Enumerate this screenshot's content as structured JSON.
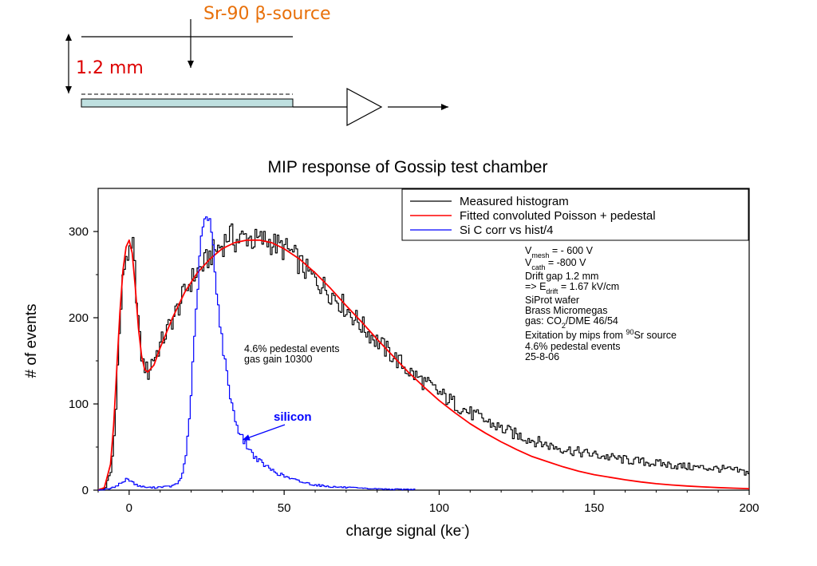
{
  "schematic": {
    "source_label": "Sr-90 β-source",
    "gap_label": "1.2 mm",
    "source_color": "#e8700a",
    "gap_color": "#dd0000",
    "plate_color": "#bfe0e0"
  },
  "chart_data": {
    "type": "line",
    "title": "MIP response of Gossip test chamber",
    "xlabel": "charge signal (ke",
    "xlabel_sup": "-",
    "xlabel_end": ")",
    "ylabel": "# of events",
    "xlim": [
      -10,
      200
    ],
    "ylim": [
      0,
      350
    ],
    "x_ticks": [
      0,
      50,
      100,
      150,
      200
    ],
    "y_ticks": [
      0,
      100,
      200,
      300
    ],
    "grid": false,
    "legend_position": "top-right",
    "series": [
      {
        "name": "Measured histogram",
        "color": "#000000",
        "style": "step",
        "points": [
          [
            -10,
            0
          ],
          [
            -8,
            2
          ],
          [
            -6,
            22
          ],
          [
            -5,
            65
          ],
          [
            -4,
            140
          ],
          [
            -3,
            205
          ],
          [
            -2,
            255
          ],
          [
            -1,
            278
          ],
          [
            0,
            268
          ],
          [
            1,
            282
          ],
          [
            2,
            235
          ],
          [
            3,
            180
          ],
          [
            4,
            148
          ],
          [
            5,
            143
          ],
          [
            6,
            135
          ],
          [
            7,
            150
          ],
          [
            8,
            155
          ],
          [
            10,
            170
          ],
          [
            12,
            185
          ],
          [
            14,
            200
          ],
          [
            16,
            215
          ],
          [
            18,
            232
          ],
          [
            20,
            244
          ],
          [
            22,
            255
          ],
          [
            24,
            262
          ],
          [
            26,
            273
          ],
          [
            28,
            280
          ],
          [
            30,
            285
          ],
          [
            32,
            298
          ],
          [
            34,
            289
          ],
          [
            36,
            292
          ],
          [
            38,
            295
          ],
          [
            40,
            289
          ],
          [
            44,
            290
          ],
          [
            48,
            283
          ],
          [
            52,
            276
          ],
          [
            55,
            262
          ],
          [
            58,
            250
          ],
          [
            62,
            238
          ],
          [
            66,
            225
          ],
          [
            70,
            210
          ],
          [
            75,
            190
          ],
          [
            80,
            172
          ],
          [
            85,
            155
          ],
          [
            90,
            138
          ],
          [
            95,
            125
          ],
          [
            100,
            112
          ],
          [
            105,
            100
          ],
          [
            110,
            89
          ],
          [
            115,
            80
          ],
          [
            120,
            71
          ],
          [
            125,
            64
          ],
          [
            130,
            58
          ],
          [
            135,
            52
          ],
          [
            140,
            48
          ],
          [
            145,
            44
          ],
          [
            150,
            41
          ],
          [
            155,
            38
          ],
          [
            160,
            35
          ],
          [
            165,
            33
          ],
          [
            170,
            31
          ],
          [
            175,
            29
          ],
          [
            180,
            27
          ],
          [
            185,
            26
          ],
          [
            190,
            25
          ],
          [
            195,
            23
          ],
          [
            200,
            20
          ]
        ]
      },
      {
        "name": "Fitted convoluted Poisson + pedestal",
        "color": "#ff0000",
        "style": "smooth",
        "points": [
          [
            -10,
            0
          ],
          [
            -8,
            3
          ],
          [
            -6,
            30
          ],
          [
            -5,
            75
          ],
          [
            -4,
            140
          ],
          [
            -3,
            205
          ],
          [
            -2,
            255
          ],
          [
            -1,
            282
          ],
          [
            0,
            290
          ],
          [
            1,
            275
          ],
          [
            2,
            235
          ],
          [
            3,
            188
          ],
          [
            4,
            156
          ],
          [
            5,
            140
          ],
          [
            6,
            137
          ],
          [
            8,
            145
          ],
          [
            10,
            165
          ],
          [
            14,
            200
          ],
          [
            18,
            230
          ],
          [
            22,
            252
          ],
          [
            26,
            268
          ],
          [
            30,
            280
          ],
          [
            34,
            287
          ],
          [
            38,
            290
          ],
          [
            42,
            290
          ],
          [
            46,
            287
          ],
          [
            50,
            280
          ],
          [
            55,
            268
          ],
          [
            60,
            252
          ],
          [
            65,
            234
          ],
          [
            70,
            214
          ],
          [
            75,
            195
          ],
          [
            80,
            175
          ],
          [
            85,
            156
          ],
          [
            90,
            137
          ],
          [
            95,
            120
          ],
          [
            100,
            104
          ],
          [
            105,
            90
          ],
          [
            110,
            77
          ],
          [
            115,
            66
          ],
          [
            120,
            56
          ],
          [
            125,
            47
          ],
          [
            130,
            39
          ],
          [
            135,
            33
          ],
          [
            140,
            27
          ],
          [
            145,
            22
          ],
          [
            150,
            18
          ],
          [
            155,
            15
          ],
          [
            160,
            12
          ],
          [
            165,
            9.5
          ],
          [
            170,
            7.5
          ],
          [
            175,
            6
          ],
          [
            180,
            4.8
          ],
          [
            185,
            3.8
          ],
          [
            190,
            3
          ],
          [
            195,
            2.3
          ],
          [
            200,
            1.8
          ]
        ]
      },
      {
        "name": "Si C corr vs hist/4",
        "color": "#0000ff",
        "style": "step",
        "points": [
          [
            -10,
            0
          ],
          [
            -6,
            2
          ],
          [
            -4,
            6
          ],
          [
            -2,
            10
          ],
          [
            -1,
            13
          ],
          [
            0,
            12
          ],
          [
            1,
            9
          ],
          [
            2,
            6
          ],
          [
            4,
            4
          ],
          [
            6,
            3
          ],
          [
            8,
            3
          ],
          [
            10,
            4
          ],
          [
            12,
            4
          ],
          [
            14,
            5
          ],
          [
            16,
            10
          ],
          [
            17,
            20
          ],
          [
            18,
            40
          ],
          [
            19,
            75
          ],
          [
            20,
            130
          ],
          [
            21,
            185
          ],
          [
            22,
            245
          ],
          [
            23,
            290
          ],
          [
            24,
            316
          ],
          [
            25,
            312
          ],
          [
            26,
            308
          ],
          [
            27,
            280
          ],
          [
            28,
            230
          ],
          [
            29,
            195
          ],
          [
            30,
            165
          ],
          [
            31,
            140
          ],
          [
            32,
            118
          ],
          [
            33,
            98
          ],
          [
            34,
            82
          ],
          [
            35,
            70
          ],
          [
            36,
            62
          ],
          [
            38,
            50
          ],
          [
            40,
            40
          ],
          [
            42,
            33
          ],
          [
            45,
            25
          ],
          [
            48,
            19
          ],
          [
            52,
            13
          ],
          [
            56,
            9
          ],
          [
            60,
            6
          ],
          [
            65,
            4
          ],
          [
            70,
            3
          ],
          [
            75,
            2
          ],
          [
            80,
            1.5
          ],
          [
            85,
            1
          ],
          [
            92,
            1
          ]
        ]
      }
    ],
    "annotations": {
      "pedestal": [
        "4.6% pedestal events",
        "gas gain 10300"
      ],
      "silicon": "silicon",
      "params": {
        "vmesh": {
          "base": "V",
          "sub": "mesh",
          "rest": " = - 600 V"
        },
        "vcath": {
          "base": "V",
          "sub": "cath",
          "rest": " = -800 V"
        },
        "drift_gap": "Drift gap 1.2 mm",
        "edrift": {
          "base": "=> E",
          "sub": "drift",
          "rest": " = 1.67 kV/cm"
        },
        "wafer": "SiProt wafer",
        "micromegas": "Brass Micromegas",
        "gas": {
          "base": "gas: CO",
          "sub": "2",
          "rest": "/DME 46/54"
        },
        "excitation": {
          "base": "Exitation by mips from ",
          "sup": "90",
          "rest": "Sr source"
        },
        "pedestal": "4.6% pedestal events",
        "date": "25-8-06"
      }
    }
  }
}
